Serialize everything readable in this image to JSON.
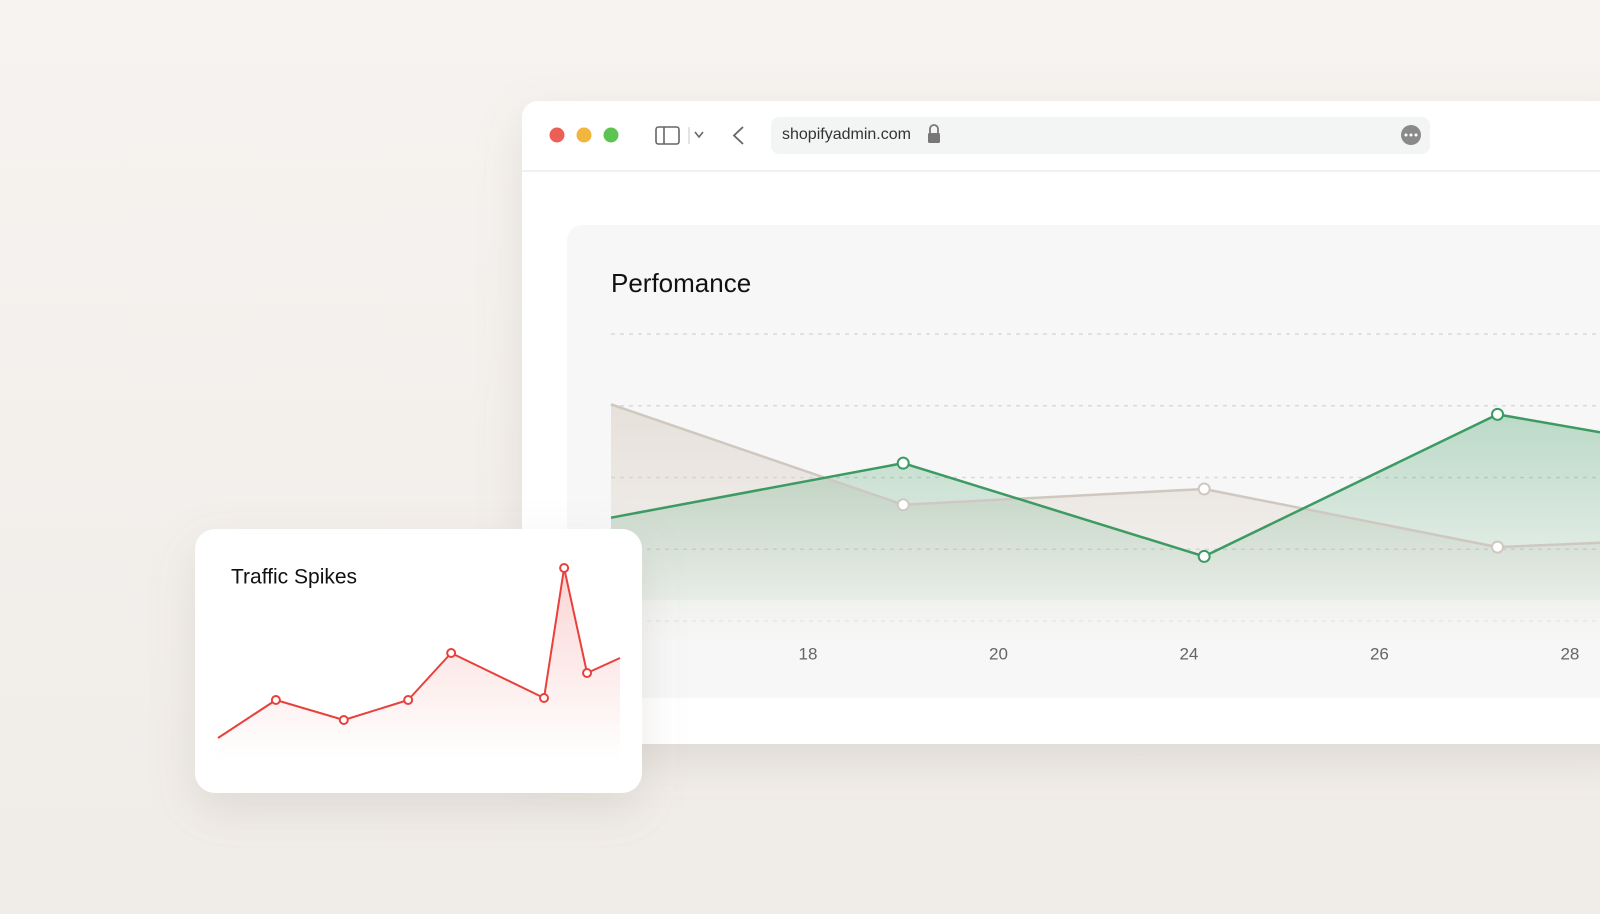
{
  "browser": {
    "url": "shopifyadmin.com"
  },
  "chart_data": [
    {
      "type": "line",
      "title": "Perfomance",
      "x": [
        -0.034,
        1.5,
        3.08,
        4.62,
        5.158
      ],
      "series": [
        {
          "color": "#cfc8c0",
          "values": [
            3.02,
            1.62,
            1.84,
            1.03,
            1.09
          ]
        },
        {
          "color": "#3d9a62",
          "values": [
            1.44,
            2.2,
            0.9,
            2.88,
            2.63
          ]
        }
      ],
      "xlim": [
        -0.034,
        5.158
      ],
      "xticks": [
        {
          "value": 1,
          "label": "18"
        },
        {
          "value": 2,
          "label": "20"
        },
        {
          "value": 3,
          "label": "24"
        },
        {
          "value": 4,
          "label": "26"
        },
        {
          "value": 5,
          "label": "28"
        }
      ],
      "ylim": [
        0,
        4
      ],
      "yticks": [
        0,
        1,
        2,
        3,
        4
      ],
      "grid": true
    },
    {
      "type": "line",
      "title": "Traffic Spikes",
      "x": [
        0,
        14.4,
        31.3,
        47.3,
        58,
        81.1,
        86.1,
        91.8,
        100
      ],
      "series": [
        {
          "color": "#e8413c",
          "values": [
            1.0,
            2.9,
            1.9,
            2.9,
            5.25,
            3.0,
            9.5,
            4.25,
            5.0
          ]
        }
      ],
      "xlim": [
        0,
        100
      ],
      "ylim": [
        0,
        10
      ]
    }
  ]
}
